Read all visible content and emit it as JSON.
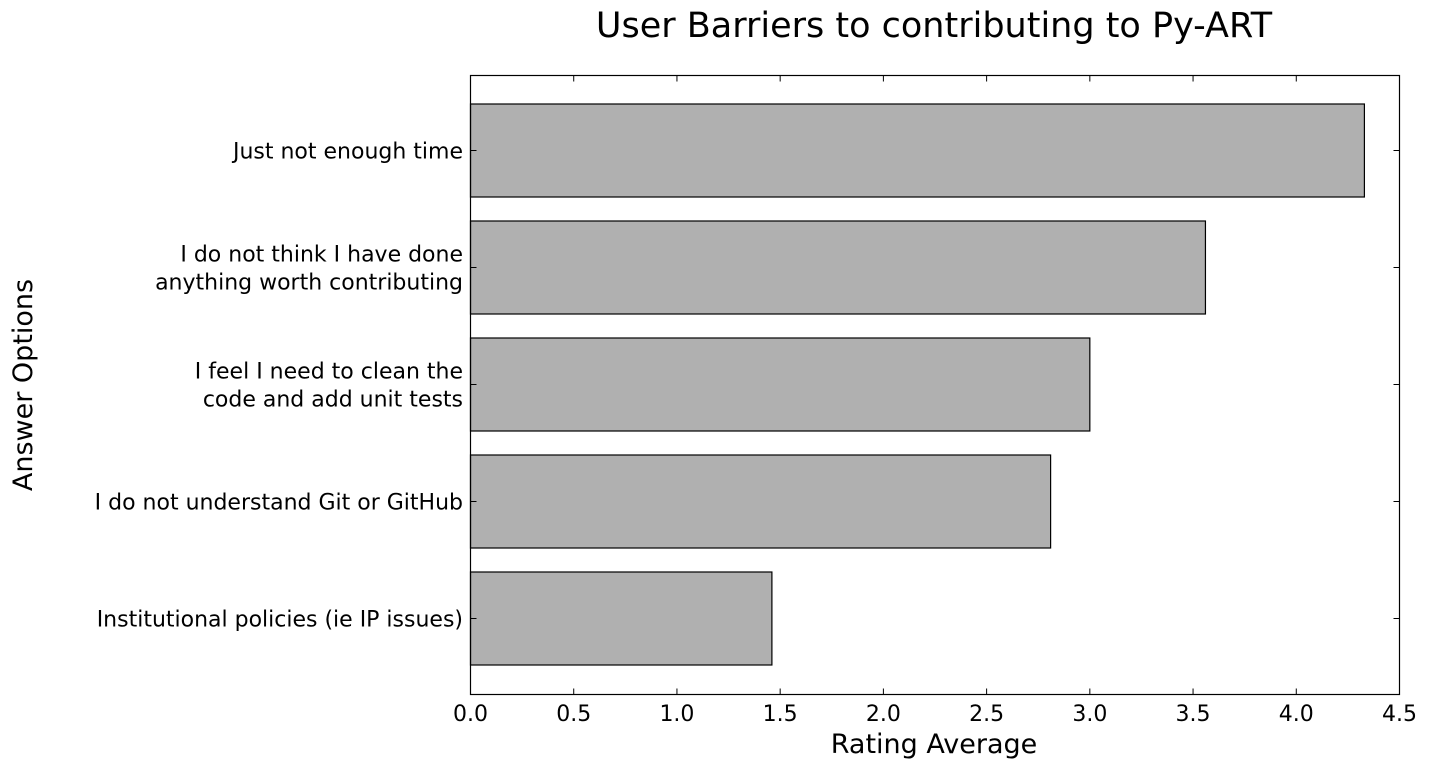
{
  "chart_data": {
    "type": "bar",
    "orientation": "horizontal",
    "title": "User Barriers to contributing to Py-ART",
    "xlabel": "Rating Average",
    "ylabel": "Answer Options",
    "categories": [
      [
        "Just not enough time"
      ],
      [
        "I do not think I have done",
        "anything worth contributing"
      ],
      [
        "I feel I need to clean the",
        "code and add unit tests"
      ],
      [
        "I do not understand Git or GitHub"
      ],
      [
        "Institutional policies (ie IP issues)"
      ]
    ],
    "values": [
      4.33,
      3.56,
      3.0,
      2.81,
      1.46
    ],
    "xlim": [
      0.0,
      4.5
    ],
    "xticks": [
      "0.0",
      "0.5",
      "1.0",
      "1.5",
      "2.0",
      "2.5",
      "3.0",
      "3.5",
      "4.0",
      "4.5"
    ],
    "bar_color": "#b0b0b0",
    "edge_color": "#000000",
    "grid": false,
    "legend": "none"
  }
}
